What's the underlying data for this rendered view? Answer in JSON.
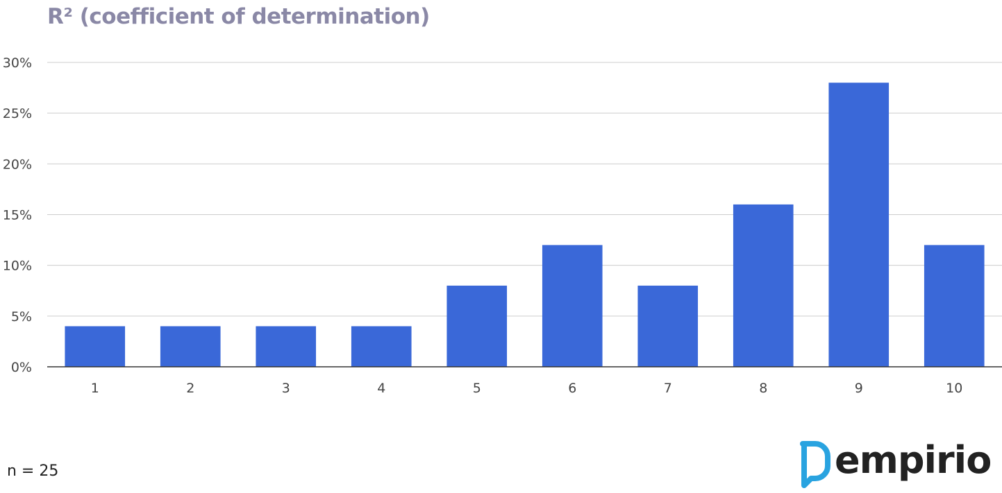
{
  "chart_data": {
    "type": "bar",
    "title": "R² (coefficient of determination)",
    "xlabel": "",
    "ylabel": "",
    "categories": [
      "1",
      "2",
      "3",
      "4",
      "5",
      "6",
      "7",
      "8",
      "9",
      "10"
    ],
    "values": [
      4,
      4,
      4,
      4,
      8,
      12,
      8,
      16,
      28,
      12
    ],
    "value_unit": "%",
    "ylim": [
      0,
      30
    ],
    "yticks": [
      0,
      5,
      10,
      15,
      20,
      25,
      30
    ],
    "ytick_labels": [
      "0%",
      "5%",
      "10%",
      "15%",
      "20%",
      "25%",
      "30%"
    ],
    "grid": true,
    "legend": "none",
    "bar_color": "#3a68d8"
  },
  "footer": {
    "sample_size": "n = 25",
    "logo_text": "empirio",
    "logo_color": "#29a3e0"
  },
  "colors": {
    "title": "#8a88a6",
    "gridline": "#cccccc",
    "axis_text": "#444444"
  }
}
